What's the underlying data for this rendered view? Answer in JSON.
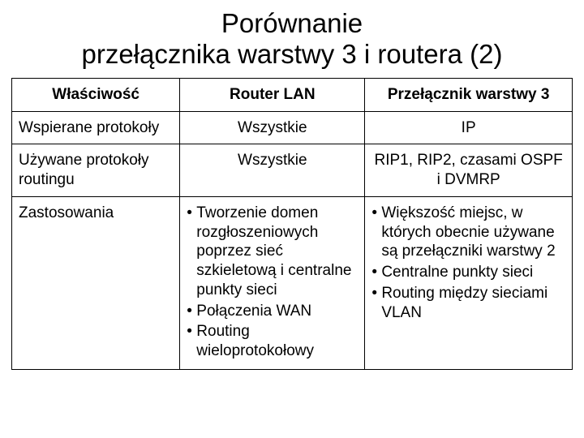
{
  "title_line1": "Porównanie",
  "title_line2": "przełącznika warstwy 3 i routera (2)",
  "table": {
    "type": "table",
    "border_color": "#000000",
    "background_color": "#ffffff",
    "text_color": "#000000",
    "header_fontsize": 19,
    "cell_fontsize": 19,
    "columns": [
      {
        "label": "Właściwość",
        "width_pct": 30,
        "align": "left"
      },
      {
        "label": "Router LAN",
        "width_pct": 33,
        "align": "center"
      },
      {
        "label": "Przełącznik warstwy 3",
        "width_pct": 37,
        "align": "center"
      }
    ],
    "rows": [
      {
        "c0": "Wspierane protokoły",
        "c1": "Wszystkie",
        "c2": "IP",
        "c1_align": "center",
        "c2_align": "center"
      },
      {
        "c0": "Używane protokoły routingu",
        "c1": "Wszystkie",
        "c2": "RIP1, RIP2, czasami OSPF i DVMRP",
        "c1_align": "center",
        "c2_align": "center"
      },
      {
        "c0": "Zastosowania",
        "c1_bullets": [
          "Tworzenie domen rozgłoszeniowych poprzez sieć szkieletową i centralne punkty sieci",
          "Połączenia WAN",
          "Routing wieloprotokołowy"
        ],
        "c2_bullets": [
          "Większość miejsc, w których obecnie używane są przełączniki warstwy 2",
          "Centralne punkty sieci",
          "Routing między sieciami VLAN"
        ]
      }
    ]
  }
}
